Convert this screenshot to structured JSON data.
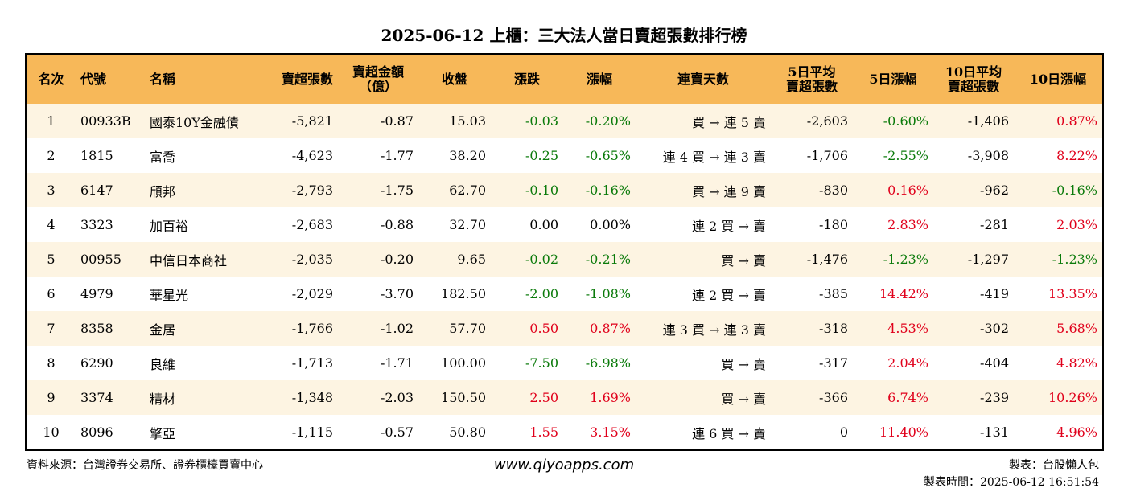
{
  "title": "2025-06-12 上櫃：三大法人當日賣超張數排行榜",
  "headers": [
    "名次",
    "代號",
    "名稱",
    "賣超張數",
    "賣超金額\n（億）",
    "收盤",
    "漲跌",
    "漲幅",
    "連賣天數",
    "5日平均\n賣超張數",
    "5日漲幅",
    "10日平均\n賣超張數",
    "10日漲幅"
  ],
  "rows": [
    [
      "1",
      "00933B",
      "國泰10Y金融債",
      "-5,821",
      "-0.87",
      "15.03",
      "-0.03",
      "-0.20%",
      "買 → 連 5 賣",
      "-2,603",
      "-0.60%",
      "-1,406",
      "0.87%"
    ],
    [
      "2",
      "1815",
      "富喬",
      "-4,623",
      "-1.77",
      "38.20",
      "-0.25",
      "-0.65%",
      "連 4 買 → 連 3 賣",
      "-1,706",
      "-2.55%",
      "-3,908",
      "8.22%"
    ],
    [
      "3",
      "6147",
      "頎邦",
      "-2,793",
      "-1.75",
      "62.70",
      "-0.10",
      "-0.16%",
      "買 → 連 9 賣",
      "-830",
      "0.16%",
      "-962",
      "-0.16%"
    ],
    [
      "4",
      "3323",
      "加百裕",
      "-2,683",
      "-0.88",
      "32.70",
      "0.00",
      "0.00%",
      "連 2 買 → 賣",
      "-180",
      "2.83%",
      "-281",
      "2.03%"
    ],
    [
      "5",
      "00955",
      "中信日本商社",
      "-2,035",
      "-0.20",
      "9.65",
      "-0.02",
      "-0.21%",
      "買 → 賣",
      "-1,476",
      "-1.23%",
      "-1,297",
      "-1.23%"
    ],
    [
      "6",
      "4979",
      "華星光",
      "-2,029",
      "-3.70",
      "182.50",
      "-2.00",
      "-1.08%",
      "連 2 買 → 賣",
      "-385",
      "14.42%",
      "-419",
      "13.35%"
    ],
    [
      "7",
      "8358",
      "金居",
      "-1,766",
      "-1.02",
      "57.70",
      "0.50",
      "0.87%",
      "連 3 買 → 連 3 賣",
      "-318",
      "4.53%",
      "-302",
      "5.68%"
    ],
    [
      "8",
      "6290",
      "良維",
      "-1,713",
      "-1.71",
      "100.00",
      "-7.50",
      "-6.98%",
      "買 → 賣",
      "-317",
      "2.04%",
      "-404",
      "4.82%"
    ],
    [
      "9",
      "3374",
      "精材",
      "-1,348",
      "-2.03",
      "150.50",
      "2.50",
      "1.69%",
      "買 → 賣",
      "-366",
      "6.74%",
      "-239",
      "10.26%"
    ],
    [
      "10",
      "8096",
      "擎亞",
      "-1,115",
      "-0.57",
      "50.80",
      "1.55",
      "3.15%",
      "連 6 買 → 賣",
      "0",
      "11.40%",
      "-131",
      "4.96%"
    ]
  ],
  "colors": {
    "header_bg": "#f7b859",
    "row_alt_bg": "#fdf4e2",
    "positive": "#e0001b",
    "negative": "#0a7a0a"
  },
  "footer": {
    "source": "資料來源：台灣證券交易所、證券櫃檯買賣中心",
    "website": "www.qiyoapps.com",
    "author": "製表：台股懶人包",
    "timestamp": "製表時間：2025-06-12 16:51:54"
  }
}
